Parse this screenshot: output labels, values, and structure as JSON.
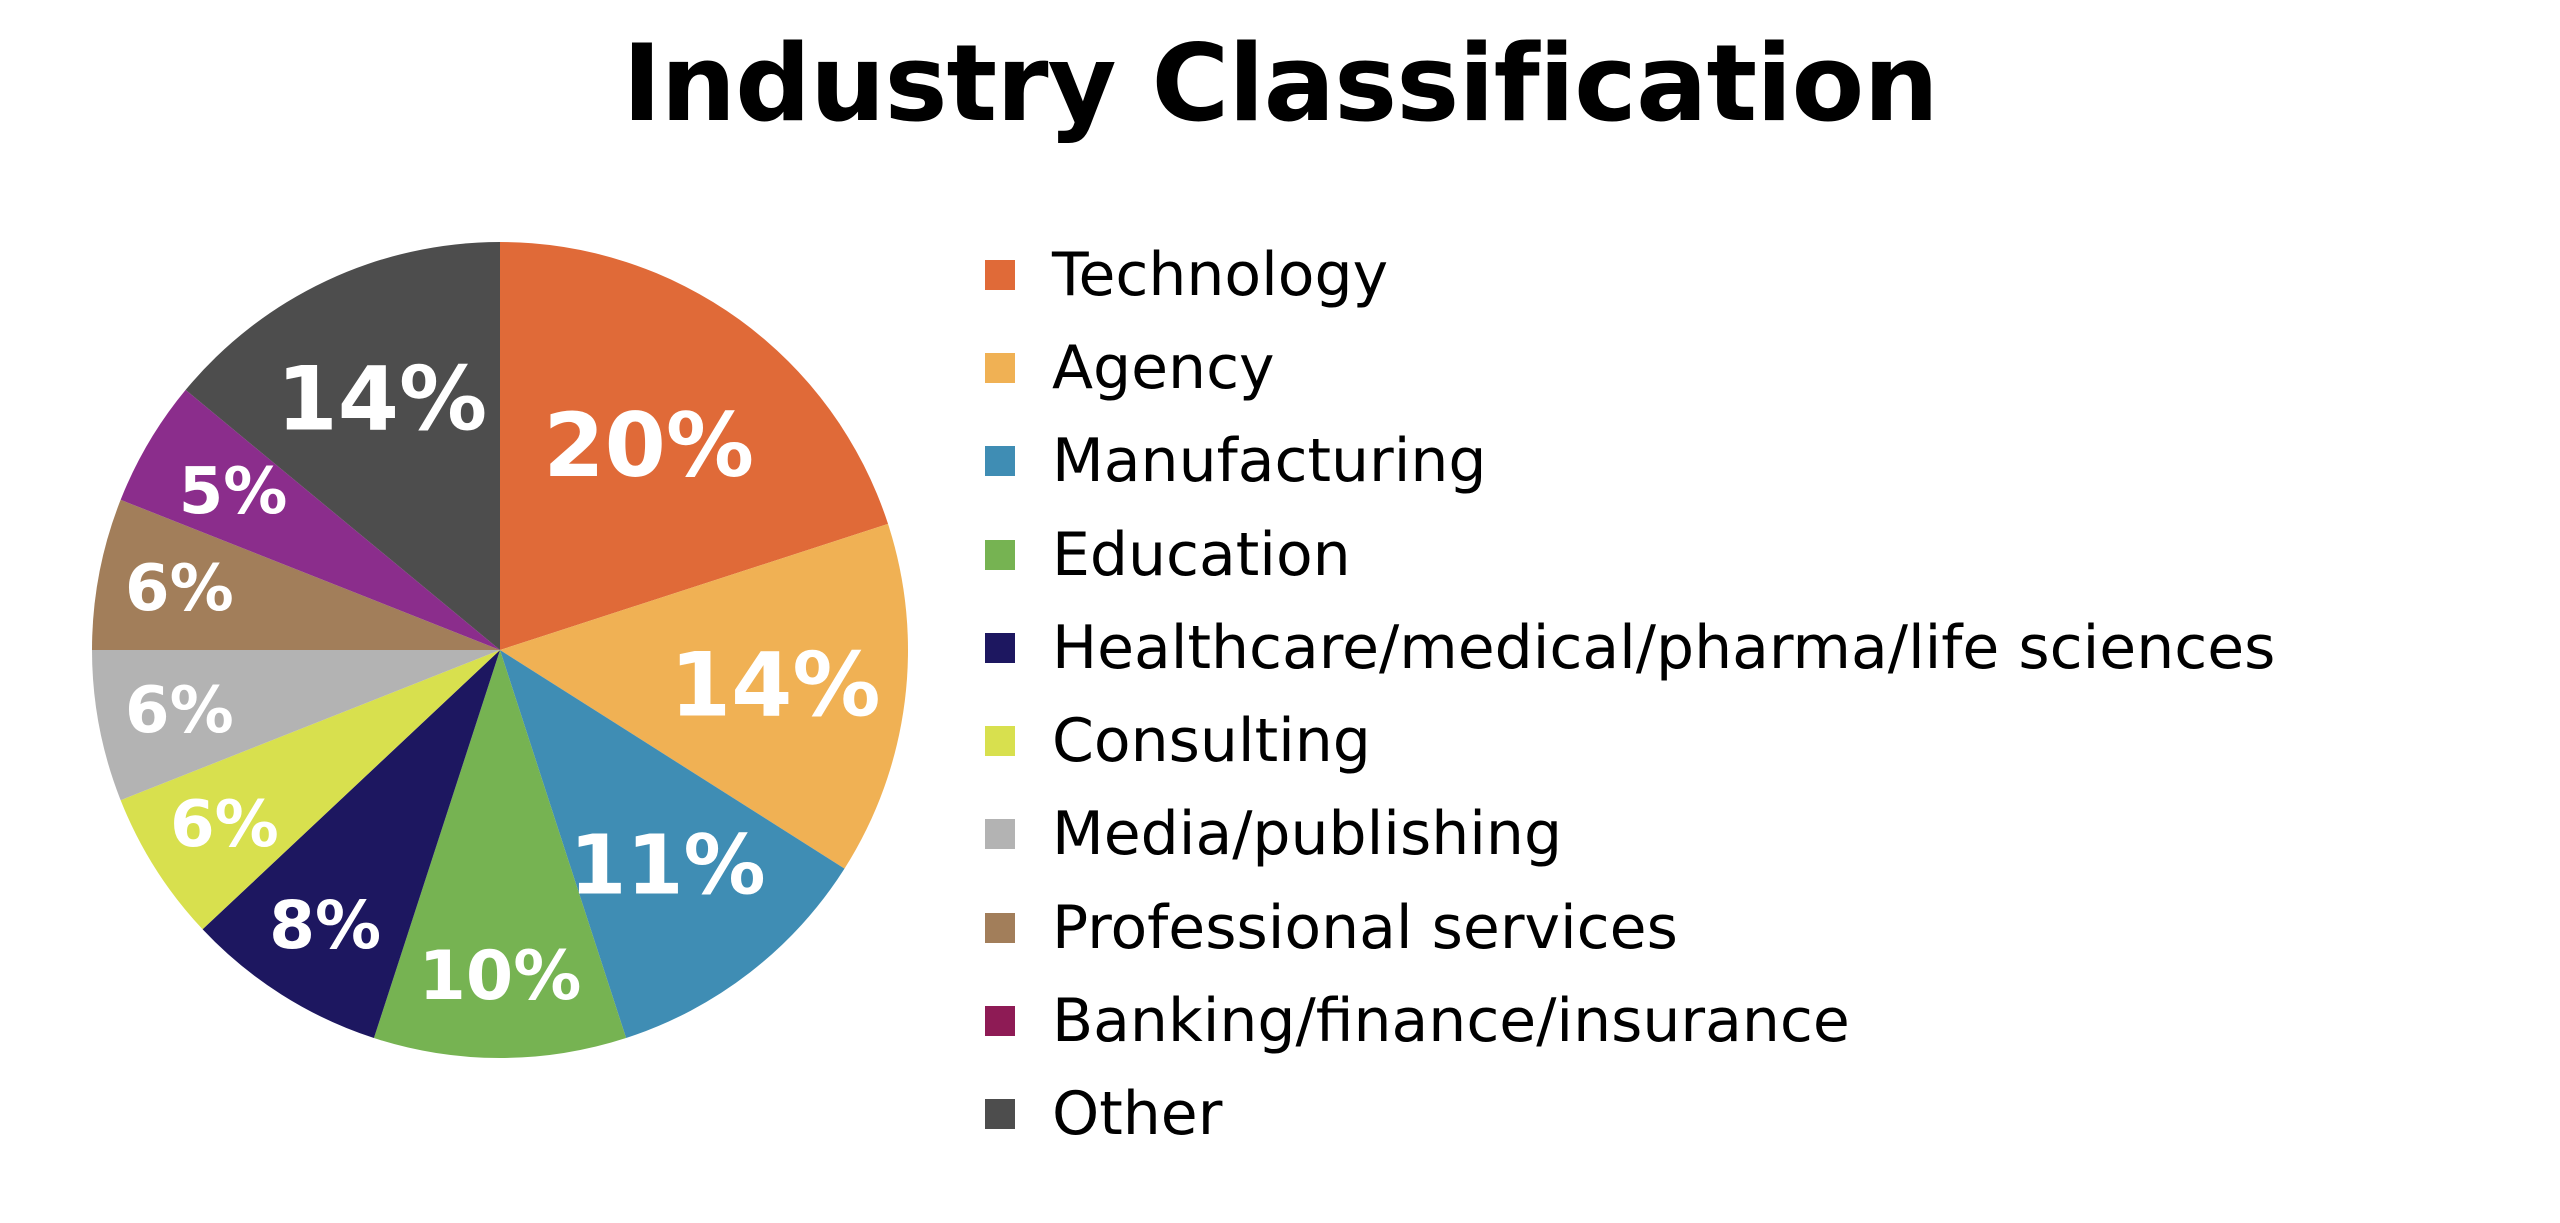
{
  "chart_data": {
    "type": "pie",
    "title": "Industry Classification",
    "legend_position": "right",
    "slices": [
      {
        "label": "Technology",
        "value": 20,
        "value_label": "20%",
        "color": "#E06A38"
      },
      {
        "label": "Agency",
        "value": 14,
        "value_label": "14%",
        "color": "#F0B154"
      },
      {
        "label": "Manufacturing",
        "value": 11,
        "value_label": "11%",
        "color": "#3F8DB4"
      },
      {
        "label": "Education",
        "value": 10,
        "value_label": "10%",
        "color": "#76B352"
      },
      {
        "label": "Healthcare/medical/pharma/life sciences",
        "value": 8,
        "value_label": "8%",
        "color": "#1D1760"
      },
      {
        "label": "Consulting",
        "value": 6,
        "value_label": "6%",
        "color": "#D8E04E"
      },
      {
        "label": "Media/publishing",
        "value": 6,
        "value_label": "6%",
        "color": "#B3B3B3"
      },
      {
        "label": "Professional services",
        "value": 6,
        "value_label": "6%",
        "color": "#A27E5A"
      },
      {
        "label": "Banking/finance/insurance",
        "value": 5,
        "value_label": "5%",
        "color": "#8B2D8C"
      },
      {
        "label": "Other",
        "value": 14,
        "value_label": "14%",
        "color": "#4D4D4D"
      }
    ],
    "legend_swatch_colors": [
      "#E06A38",
      "#F0B154",
      "#3F8DB4",
      "#76B352",
      "#1D1760",
      "#D8E04E",
      "#B3B3B3",
      "#A27E5A",
      "#8E1B55",
      "#4D4D4D"
    ]
  }
}
